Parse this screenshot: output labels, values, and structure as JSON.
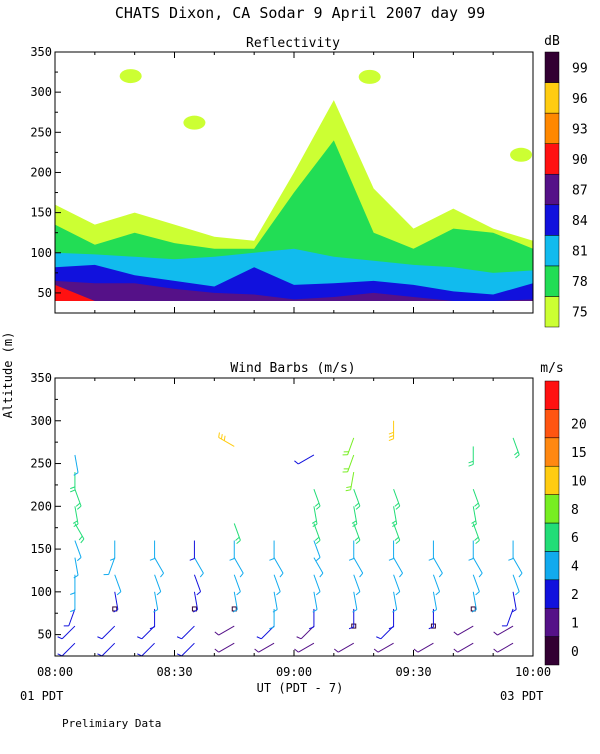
{
  "title": "CHATS Dixon, CA  Sodar   9 April 2007  day  99",
  "y_axis_label": "Altitude (m)",
  "x_axis_label": "UT  (PDT - 7)",
  "x_ticks": [
    "08:00",
    "08:30",
    "09:00",
    "09:30",
    "10:00"
  ],
  "left_footer": "01 PDT",
  "right_footer": "03 PDT",
  "note": "Prelimiary Data",
  "chart_data": [
    {
      "type": "heatmap",
      "title": "Reflectivity",
      "ylabel": "Altitude (m)",
      "xlabel": "UT  (PDT - 7)",
      "xlim": [
        "08:00",
        "10:00"
      ],
      "ylim": [
        25,
        350
      ],
      "y_ticks": [
        50,
        100,
        150,
        200,
        250,
        300,
        350
      ],
      "colorbar": {
        "unit": "dB",
        "levels": [
          75,
          78,
          81,
          84,
          87,
          90,
          93,
          96,
          99
        ],
        "colors": [
          "#ccff33",
          "#22dd55",
          "#11bbee",
          "#1111dd",
          "#551188",
          "#ff1111",
          "#ff8800",
          "#ffcc11",
          "#330033"
        ]
      },
      "x_minutes": [
        0,
        10,
        20,
        30,
        40,
        50,
        60,
        70,
        80,
        90,
        100,
        110,
        120
      ],
      "contours": [
        {
          "level": 75,
          "top": [
            160,
            135,
            150,
            135,
            120,
            115,
            200,
            290,
            180,
            130,
            155,
            130,
            115
          ]
        },
        {
          "level": 78,
          "top": [
            135,
            110,
            125,
            112,
            105,
            105,
            175,
            240,
            125,
            105,
            130,
            125,
            105
          ]
        },
        {
          "level": 81,
          "top": [
            100,
            98,
            95,
            92,
            95,
            100,
            105,
            95,
            90,
            85,
            82,
            75,
            78
          ]
        },
        {
          "level": 84,
          "top": [
            82,
            85,
            72,
            65,
            58,
            82,
            60,
            62,
            65,
            60,
            52,
            48,
            62
          ]
        },
        {
          "level": 87,
          "top": [
            65,
            62,
            62,
            55,
            50,
            48,
            42,
            45,
            50,
            45,
            40,
            40,
            42
          ]
        },
        {
          "level": 90,
          "top": [
            60,
            40,
            40,
            40,
            40,
            40,
            40,
            40,
            40,
            40,
            40,
            40,
            40
          ]
        }
      ],
      "patches": [
        {
          "level": 75,
          "time_min": 35,
          "altitude": 262
        },
        {
          "level": 75,
          "time_min": 117,
          "altitude": 222
        },
        {
          "level": 75,
          "time_min": 19,
          "altitude": 320
        },
        {
          "level": 75,
          "time_min": 79,
          "altitude": 319
        }
      ]
    },
    {
      "type": "scatter",
      "title": "Wind Barbs (m/s)",
      "ylabel": "Altitude (m)",
      "xlabel": "UT  (PDT - 7)",
      "xlim": [
        "08:00",
        "10:00"
      ],
      "ylim": [
        25,
        350
      ],
      "y_ticks": [
        50,
        100,
        150,
        200,
        250,
        300,
        350
      ],
      "colorbar": {
        "unit": "m/s",
        "levels": [
          0,
          1,
          2,
          4,
          6,
          8,
          10,
          15,
          20
        ],
        "colors": [
          "#330033",
          "#551188",
          "#1111dd",
          "#11aaee",
          "#22dd77",
          "#77ee22",
          "#ffcc11",
          "#ff8811",
          "#ff5511",
          "#ff1111"
        ]
      },
      "profile_times_min": [
        5,
        15,
        25,
        35,
        45,
        55,
        65,
        75,
        85,
        95,
        105,
        115
      ],
      "profiles": [
        {
          "time_min": 5,
          "alt": [
            40,
            60,
            80,
            100,
            120,
            140,
            160,
            180,
            200,
            220,
            240,
            260
          ],
          "dir": [
            225,
            225,
            200,
            180,
            180,
            170,
            160,
            150,
            170,
            160,
            180,
            170
          ],
          "spd": [
            2,
            2,
            3,
            4,
            4,
            5,
            5,
            6,
            6,
            6,
            6,
            5
          ]
        },
        {
          "time_min": 15,
          "alt": [
            40,
            60,
            80,
            100,
            120,
            140,
            160
          ],
          "dir": [
            225,
            225,
            180,
            170,
            160,
            200,
            180
          ],
          "spd": [
            2,
            2,
            0.5,
            3,
            4,
            5,
            4
          ]
        },
        {
          "time_min": 25,
          "alt": [
            40,
            60,
            80,
            100,
            120,
            140,
            160
          ],
          "dir": [
            225,
            225,
            180,
            170,
            160,
            150,
            180
          ],
          "spd": [
            2,
            2,
            3,
            4,
            4,
            5,
            4
          ]
        },
        {
          "time_min": 35,
          "alt": [
            40,
            60,
            80,
            100,
            120,
            140,
            160
          ],
          "dir": [
            225,
            225,
            180,
            170,
            160,
            150,
            180
          ],
          "spd": [
            2,
            2,
            0.5,
            3,
            3,
            4,
            3
          ]
        },
        {
          "time_min": 45,
          "alt": [
            40,
            60,
            80,
            100,
            120,
            140,
            160,
            180,
            270
          ],
          "dir": [
            240,
            240,
            180,
            170,
            160,
            150,
            180,
            160,
            300
          ],
          "spd": [
            1,
            1,
            0.5,
            4,
            4,
            5,
            5,
            6,
            12
          ]
        },
        {
          "time_min": 55,
          "alt": [
            40,
            60,
            80,
            100,
            120,
            140,
            160
          ],
          "dir": [
            240,
            225,
            180,
            170,
            160,
            150,
            180
          ],
          "spd": [
            1,
            2,
            4,
            4,
            5,
            5,
            4
          ]
        },
        {
          "time_min": 65,
          "alt": [
            40,
            60,
            80,
            100,
            120,
            140,
            160,
            180,
            200,
            220,
            260
          ],
          "dir": [
            240,
            225,
            180,
            170,
            160,
            150,
            160,
            160,
            170,
            160,
            240
          ],
          "spd": [
            1,
            1,
            3,
            4,
            4,
            5,
            5,
            6,
            6,
            6,
            2
          ]
        },
        {
          "time_min": 75,
          "alt": [
            40,
            60,
            80,
            100,
            120,
            140,
            160,
            180,
            200,
            220,
            240,
            260,
            280
          ],
          "dir": [
            240,
            0,
            180,
            170,
            160,
            150,
            180,
            160,
            170,
            160,
            190,
            200,
            200
          ],
          "spd": [
            1,
            0.5,
            3,
            4,
            4,
            5,
            5,
            6,
            6,
            6,
            8,
            8,
            8
          ]
        },
        {
          "time_min": 85,
          "alt": [
            40,
            60,
            80,
            100,
            120,
            140,
            160,
            180,
            200,
            220,
            300
          ],
          "dir": [
            240,
            225,
            180,
            170,
            160,
            150,
            180,
            160,
            170,
            160,
            180
          ],
          "spd": [
            1,
            2,
            3,
            4,
            4,
            5,
            5,
            6,
            6,
            6,
            12
          ]
        },
        {
          "time_min": 95,
          "alt": [
            40,
            60,
            80,
            100,
            120,
            140,
            160
          ],
          "dir": [
            240,
            0,
            180,
            170,
            160,
            150,
            180
          ],
          "spd": [
            1,
            0.5,
            3,
            4,
            4,
            5,
            4
          ]
        },
        {
          "time_min": 105,
          "alt": [
            40,
            60,
            80,
            100,
            120,
            140,
            160,
            180,
            200,
            220,
            270
          ],
          "dir": [
            240,
            240,
            180,
            170,
            160,
            150,
            180,
            160,
            170,
            160,
            180
          ],
          "spd": [
            1,
            1,
            0.5,
            4,
            4,
            5,
            5,
            6,
            6,
            6,
            6
          ]
        },
        {
          "time_min": 115,
          "alt": [
            40,
            60,
            80,
            100,
            120,
            140,
            160,
            280
          ],
          "dir": [
            240,
            240,
            200,
            170,
            160,
            150,
            180,
            160
          ],
          "spd": [
            1,
            1,
            3,
            3,
            4,
            5,
            4,
            6
          ]
        }
      ]
    }
  ]
}
